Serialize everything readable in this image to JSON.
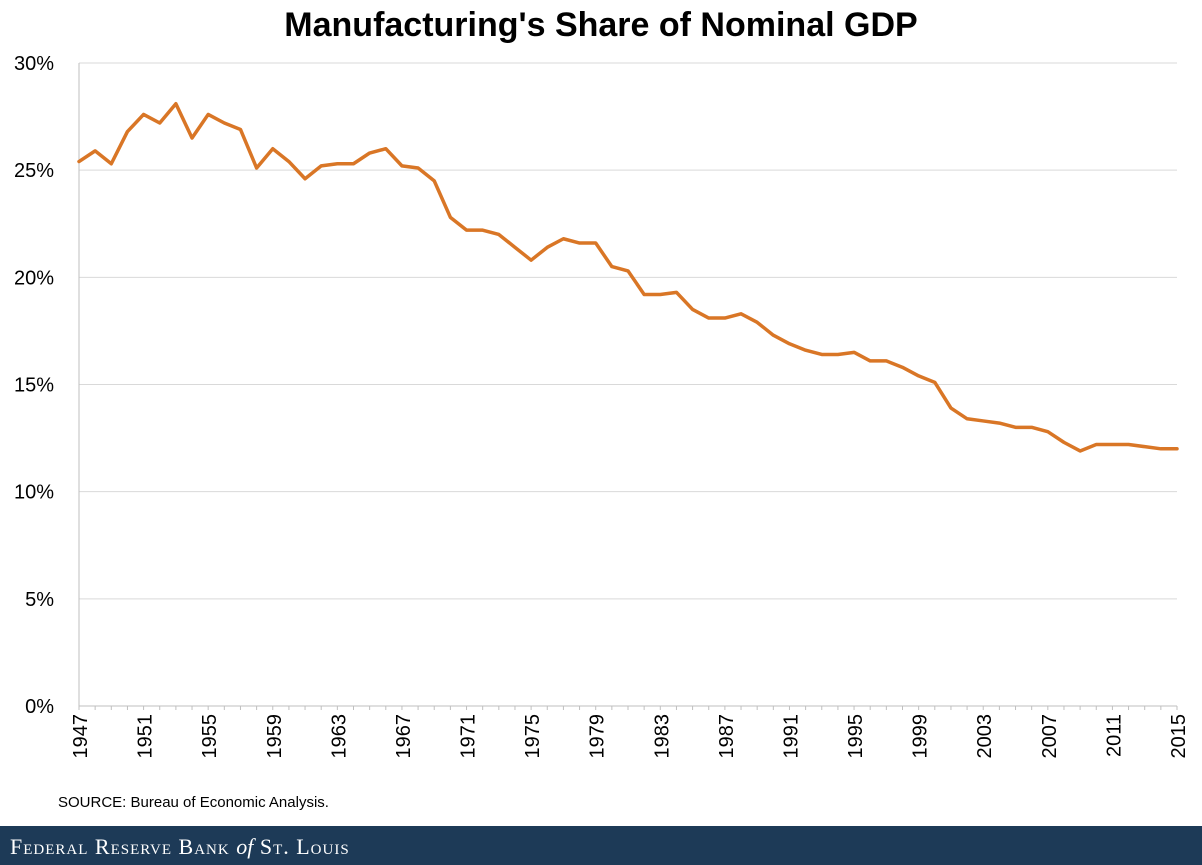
{
  "title": "Manufacturing's Share of Nominal GDP",
  "source": "SOURCE: Bureau of Economic Analysis.",
  "footer": {
    "part1": "Federal Reserve Bank",
    "part2": "of",
    "part3": "St. Louis"
  },
  "colors": {
    "line": "#d97626",
    "grid": "#d9d9d9",
    "footer_bg": "#1d3a57"
  },
  "chart_data": {
    "type": "line",
    "title": "Manufacturing's Share of Nominal GDP",
    "xlabel": "",
    "ylabel": "",
    "xlim": [
      1947,
      2015
    ],
    "ylim": [
      0,
      30
    ],
    "y_ticks": [
      0,
      5,
      10,
      15,
      20,
      25,
      30
    ],
    "y_tick_labels": [
      "0%",
      "5%",
      "10%",
      "15%",
      "20%",
      "25%",
      "30%"
    ],
    "x_ticks": [
      1947,
      1951,
      1955,
      1959,
      1963,
      1967,
      1971,
      1975,
      1979,
      1983,
      1987,
      1991,
      1995,
      1999,
      2003,
      2007,
      2011,
      2015
    ],
    "x_tick_labels": [
      "1947",
      "1951",
      "1955",
      "1959",
      "1963",
      "1967",
      "1971",
      "1975",
      "1979",
      "1983",
      "1987",
      "1991",
      "1995",
      "1999",
      "2003",
      "2007",
      "2011",
      "2015"
    ],
    "grid": true,
    "legend": "none",
    "series": [
      {
        "x": [
          1947,
          1948,
          1949,
          1950,
          1951,
          1952,
          1953,
          1954,
          1955,
          1956,
          1957,
          1958,
          1959,
          1960,
          1961,
          1962,
          1963,
          1964,
          1965,
          1966,
          1967,
          1968,
          1969,
          1970,
          1971,
          1972,
          1973,
          1974,
          1975,
          1976,
          1977,
          1978,
          1979,
          1980,
          1981,
          1982,
          1983,
          1984,
          1985,
          1986,
          1987,
          1988,
          1989,
          1990,
          1991,
          1992,
          1993,
          1994,
          1995,
          1996,
          1997,
          1998,
          1999,
          2000,
          2001,
          2002,
          2003,
          2004,
          2005,
          2006,
          2007,
          2008,
          2009,
          2010,
          2011,
          2012,
          2013,
          2014,
          2015
        ],
        "values": [
          25.4,
          25.9,
          25.3,
          26.8,
          27.6,
          27.2,
          28.1,
          26.5,
          27.6,
          27.2,
          26.9,
          25.1,
          26.0,
          25.4,
          24.6,
          25.2,
          25.3,
          25.3,
          25.8,
          26.0,
          25.2,
          25.1,
          24.5,
          22.8,
          22.2,
          22.2,
          22.0,
          21.4,
          20.8,
          21.4,
          21.8,
          21.6,
          21.6,
          20.5,
          20.3,
          19.2,
          19.2,
          19.3,
          18.5,
          18.1,
          18.1,
          18.3,
          17.9,
          17.3,
          16.9,
          16.6,
          16.4,
          16.4,
          16.5,
          16.1,
          16.1,
          15.8,
          15.4,
          15.1,
          13.9,
          13.4,
          13.3,
          13.2,
          13.0,
          13.0,
          12.8,
          12.3,
          11.9,
          12.2,
          12.2,
          12.2,
          12.1,
          12.0,
          12.0
        ]
      }
    ]
  }
}
